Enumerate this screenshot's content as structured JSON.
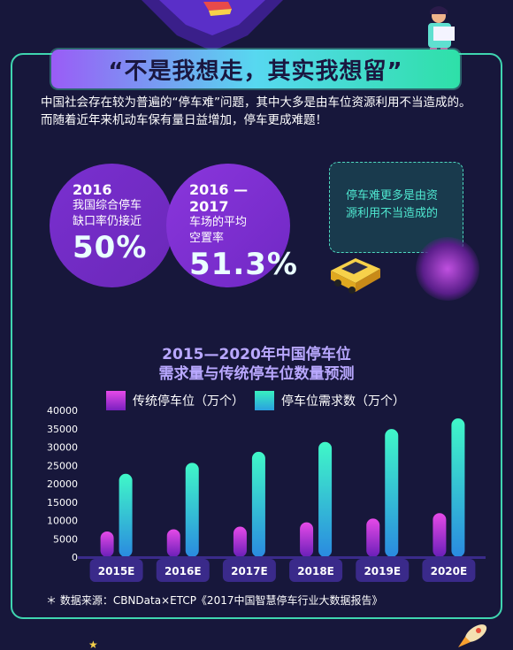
{
  "banner": {
    "title": "“不是我想走，其实我想留”"
  },
  "intro": {
    "text": "中国社会存在较为普遍的“停车难”问题，其中大多是由车位资源利用不当造成的。而随着近年来机动车保有量日益增加，停车更成难题！"
  },
  "stats": [
    {
      "year": "2016",
      "desc1": "我国综合停车",
      "desc2": "缺口率仍接近",
      "value": "50%"
    },
    {
      "year": "2016 — 2017",
      "desc1": "车场的平均",
      "desc2": "空置率",
      "value": "51.3%"
    }
  ],
  "bubble": {
    "line1": "停车难更多是由资",
    "line2": "源利用不当造成的"
  },
  "chart_data": {
    "type": "bar",
    "title_line1": "2015—2020年中国停车位",
    "title_line2": "需求量与传统停车位数量预测",
    "categories": [
      "2015E",
      "2016E",
      "2017E",
      "2018E",
      "2019E",
      "2020E"
    ],
    "series": [
      {
        "name": "传统停车位（万个）",
        "values": [
          7000,
          7600,
          8300,
          9500,
          10500,
          12000
        ],
        "color": "#c03ae8"
      },
      {
        "name": "停车位需求数（万个）",
        "values": [
          22700,
          25700,
          28700,
          31400,
          34900,
          37800
        ],
        "color": "#3ef0d0"
      }
    ],
    "yticks": [
      "0",
      "5000",
      "10000",
      "15000",
      "20000",
      "25000",
      "30000",
      "35000",
      "40000"
    ],
    "ylim": [
      0,
      40000
    ],
    "grid": false,
    "legend_position": "top"
  },
  "source": {
    "text": "＊ 数据来源：CBNData×ETCP《2017中国智慧停车行业大数据报告》"
  },
  "colors": {
    "accent": "#3fd5b0",
    "purple": "#7a2fd0",
    "background": "#17173b"
  }
}
